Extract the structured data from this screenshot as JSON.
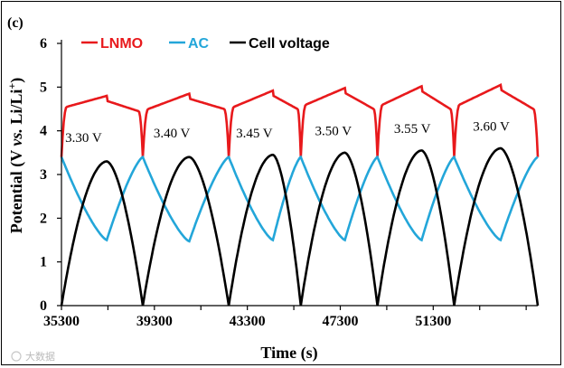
{
  "chart_data": {
    "type": "line",
    "panel_label": "(c)",
    "xlabel": "Time (s)",
    "ylabel": {
      "prefix": "Potential (V ",
      "vs": "vs.",
      "middle": " Li/Li",
      "sup": "+",
      "suffix": ")"
    },
    "xlim": [
      35300,
      55800
    ],
    "ylim": [
      0,
      6
    ],
    "x_ticks": [
      35300,
      39300,
      43300,
      47300,
      51300
    ],
    "x_tick_labels": [
      "35300",
      "39300",
      "43300",
      "47300",
      "51300"
    ],
    "y_ticks": [
      0,
      1,
      2,
      3,
      4,
      5,
      6
    ],
    "y_tick_labels": [
      "0",
      "1",
      "2",
      "3",
      "4",
      "5",
      "6"
    ],
    "legend_position": "top-left",
    "series": [
      {
        "name": "LNMO",
        "color": "#e8191c"
      },
      {
        "name": "AC",
        "color": "#23a6d9"
      },
      {
        "name": "Cell voltage",
        "color": "#000000"
      }
    ],
    "cycles": [
      {
        "start": 35300,
        "end": 38800,
        "switch": 37250,
        "cell_peak": 3.3,
        "lnmo_charge_start": 4.55,
        "lnmo_peak": 4.8,
        "lnmo_discharge_end": 4.45,
        "ac_start": 3.4,
        "ac_min": 1.5
      },
      {
        "start": 38800,
        "end": 42500,
        "switch": 40800,
        "cell_peak": 3.4,
        "lnmo_charge_start": 4.5,
        "lnmo_peak": 4.85,
        "lnmo_discharge_end": 4.5,
        "ac_start": 3.4,
        "ac_min": 1.47
      },
      {
        "start": 42500,
        "end": 45600,
        "switch": 44400,
        "cell_peak": 3.45,
        "lnmo_charge_start": 4.55,
        "lnmo_peak": 4.92,
        "lnmo_discharge_end": 4.5,
        "ac_start": 3.4,
        "ac_min": 1.5
      },
      {
        "start": 45600,
        "end": 48900,
        "switch": 47500,
        "cell_peak": 3.5,
        "lnmo_charge_start": 4.6,
        "lnmo_peak": 4.98,
        "lnmo_discharge_end": 4.5,
        "ac_start": 3.4,
        "ac_min": 1.5
      },
      {
        "start": 48900,
        "end": 52200,
        "switch": 50800,
        "cell_peak": 3.55,
        "lnmo_charge_start": 4.6,
        "lnmo_peak": 5.02,
        "lnmo_discharge_end": 4.5,
        "ac_start": 3.4,
        "ac_min": 1.5
      },
      {
        "start": 52200,
        "end": 55800,
        "switch": 54200,
        "cell_peak": 3.6,
        "lnmo_charge_start": 4.6,
        "lnmo_peak": 5.05,
        "lnmo_discharge_end": 4.5,
        "ac_start": 3.4,
        "ac_min": 1.5
      }
    ],
    "annotations": [
      {
        "text": "3.30 V",
        "x": 36250,
        "y": 3.75
      },
      {
        "text": "3.40 V",
        "x": 40050,
        "y": 3.85
      },
      {
        "text": "3.45 V",
        "x": 43600,
        "y": 3.85
      },
      {
        "text": "3.50 V",
        "x": 47000,
        "y": 3.9
      },
      {
        "text": "3.55 V",
        "x": 50400,
        "y": 3.95
      },
      {
        "text": "3.60 V",
        "x": 53800,
        "y": 4.0
      }
    ]
  },
  "watermark": "大数据"
}
